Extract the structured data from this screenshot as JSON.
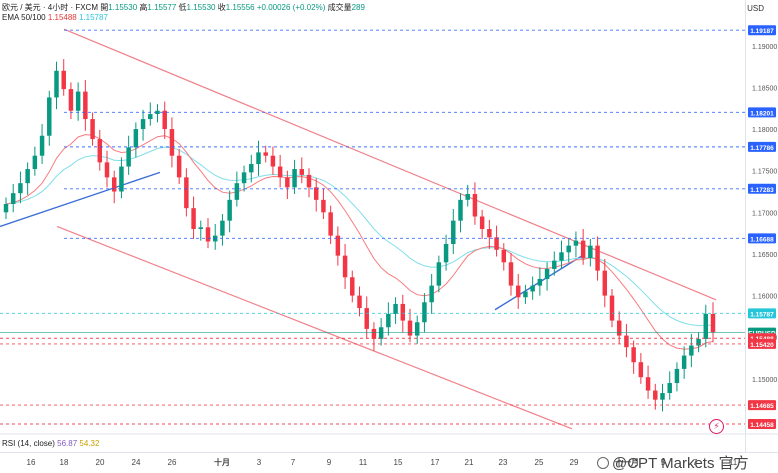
{
  "header": {
    "symbol": "欧元 / 美元 · 4小时 · FXCM",
    "open_label": "開",
    "open": "1.15530",
    "high_label": "高",
    "high": "1.15577",
    "low_label": "低",
    "low": "1.15530",
    "close_label": "收",
    "close": "1.15556",
    "change": "+0.00026 (+0.02%)",
    "volume_label": "成交量",
    "volume": "289",
    "ema_label": "EMA 50/100",
    "ema50": "1.15488",
    "ema100": "1.15787"
  },
  "rsi": {
    "label": "RSI (14, close)",
    "value1": "56.87",
    "value2": "54.32"
  },
  "currency": "USD",
  "watermark": "@CPT Markets 官方",
  "colors": {
    "bull": "#089981",
    "bear": "#f23645",
    "ema50": "#f77c80",
    "ema100": "#80deea",
    "channel": "#f0818a",
    "trend": "#3b6fd6",
    "level_blue": "#2962ff",
    "level_red": "#f23645"
  },
  "chart_data": {
    "type": "candlestick",
    "title": "",
    "xlabel": "",
    "ylabel": "",
    "ylim": [
      1.1435,
      1.1955
    ],
    "y_ticks": [
      "1.19000",
      "1.18500",
      "1.18000",
      "1.17500",
      "1.17000",
      "1.16500",
      "1.16000",
      "1.15500",
      "1.15000"
    ],
    "x_ticks": [
      "16",
      "18",
      "20",
      "24",
      "26",
      "十月",
      "3",
      "7",
      "9",
      "11",
      "15",
      "17",
      "21",
      "23",
      "25",
      "29",
      "十一月",
      "5",
      "7",
      "11"
    ],
    "price_levels": [
      {
        "label": "1.19187",
        "value": 1.19187,
        "color": "blue"
      },
      {
        "label": "1.18201",
        "value": 1.18201,
        "color": "blue"
      },
      {
        "label": "1.17786",
        "value": 1.17786,
        "color": "blue"
      },
      {
        "label": "1.17283",
        "value": 1.17283,
        "color": "blue"
      },
      {
        "label": "1.16688",
        "value": 1.16688,
        "color": "blue"
      },
      {
        "label": "1.15787",
        "value": 1.15787,
        "color": "cyan"
      },
      {
        "label": "EURUSD",
        "value": 1.15556,
        "color": "green",
        "countdown": "03:14:07"
      },
      {
        "label": "1.15488",
        "value": 1.15488,
        "color": "red"
      },
      {
        "label": "1.15420",
        "value": 1.1542,
        "color": "red"
      },
      {
        "label": "1.14685",
        "value": 1.14685,
        "color": "red"
      },
      {
        "label": "1.14458",
        "value": 1.14458,
        "color": "red"
      }
    ],
    "close_series": [
      1.171,
      1.1723,
      1.1735,
      1.1752,
      1.1768,
      1.1792,
      1.1838,
      1.187,
      1.1848,
      1.1822,
      1.1845,
      1.1812,
      1.1788,
      1.176,
      1.1742,
      1.1725,
      1.1755,
      1.1778,
      1.18,
      1.1812,
      1.1818,
      1.1822,
      1.18,
      1.1768,
      1.1742,
      1.1705,
      1.168,
      1.1682,
      1.1665,
      1.1672,
      1.169,
      1.1715,
      1.1735,
      1.1748,
      1.1758,
      1.1772,
      1.1768,
      1.1755,
      1.1742,
      1.173,
      1.1752,
      1.1745,
      1.173,
      1.1715,
      1.17,
      1.1672,
      1.1648,
      1.1622,
      1.16,
      1.1585,
      1.156,
      1.1548,
      1.1562,
      1.1578,
      1.159,
      1.157,
      1.1552,
      1.1568,
      1.1592,
      1.1612,
      1.164,
      1.1662,
      1.169,
      1.1715,
      1.1722,
      1.1695,
      1.168,
      1.167,
      1.1655,
      1.164,
      1.1612,
      1.1598,
      1.1605,
      1.1612,
      1.162,
      1.1632,
      1.1642,
      1.1652,
      1.166,
      1.1666,
      1.1645,
      1.166,
      1.163,
      1.16,
      1.157,
      1.1552,
      1.1538,
      1.152,
      1.1502,
      1.1486,
      1.1475,
      1.1483,
      1.1495,
      1.1512,
      1.1528,
      1.154,
      1.1548,
      1.1578,
      1.1556
    ]
  }
}
